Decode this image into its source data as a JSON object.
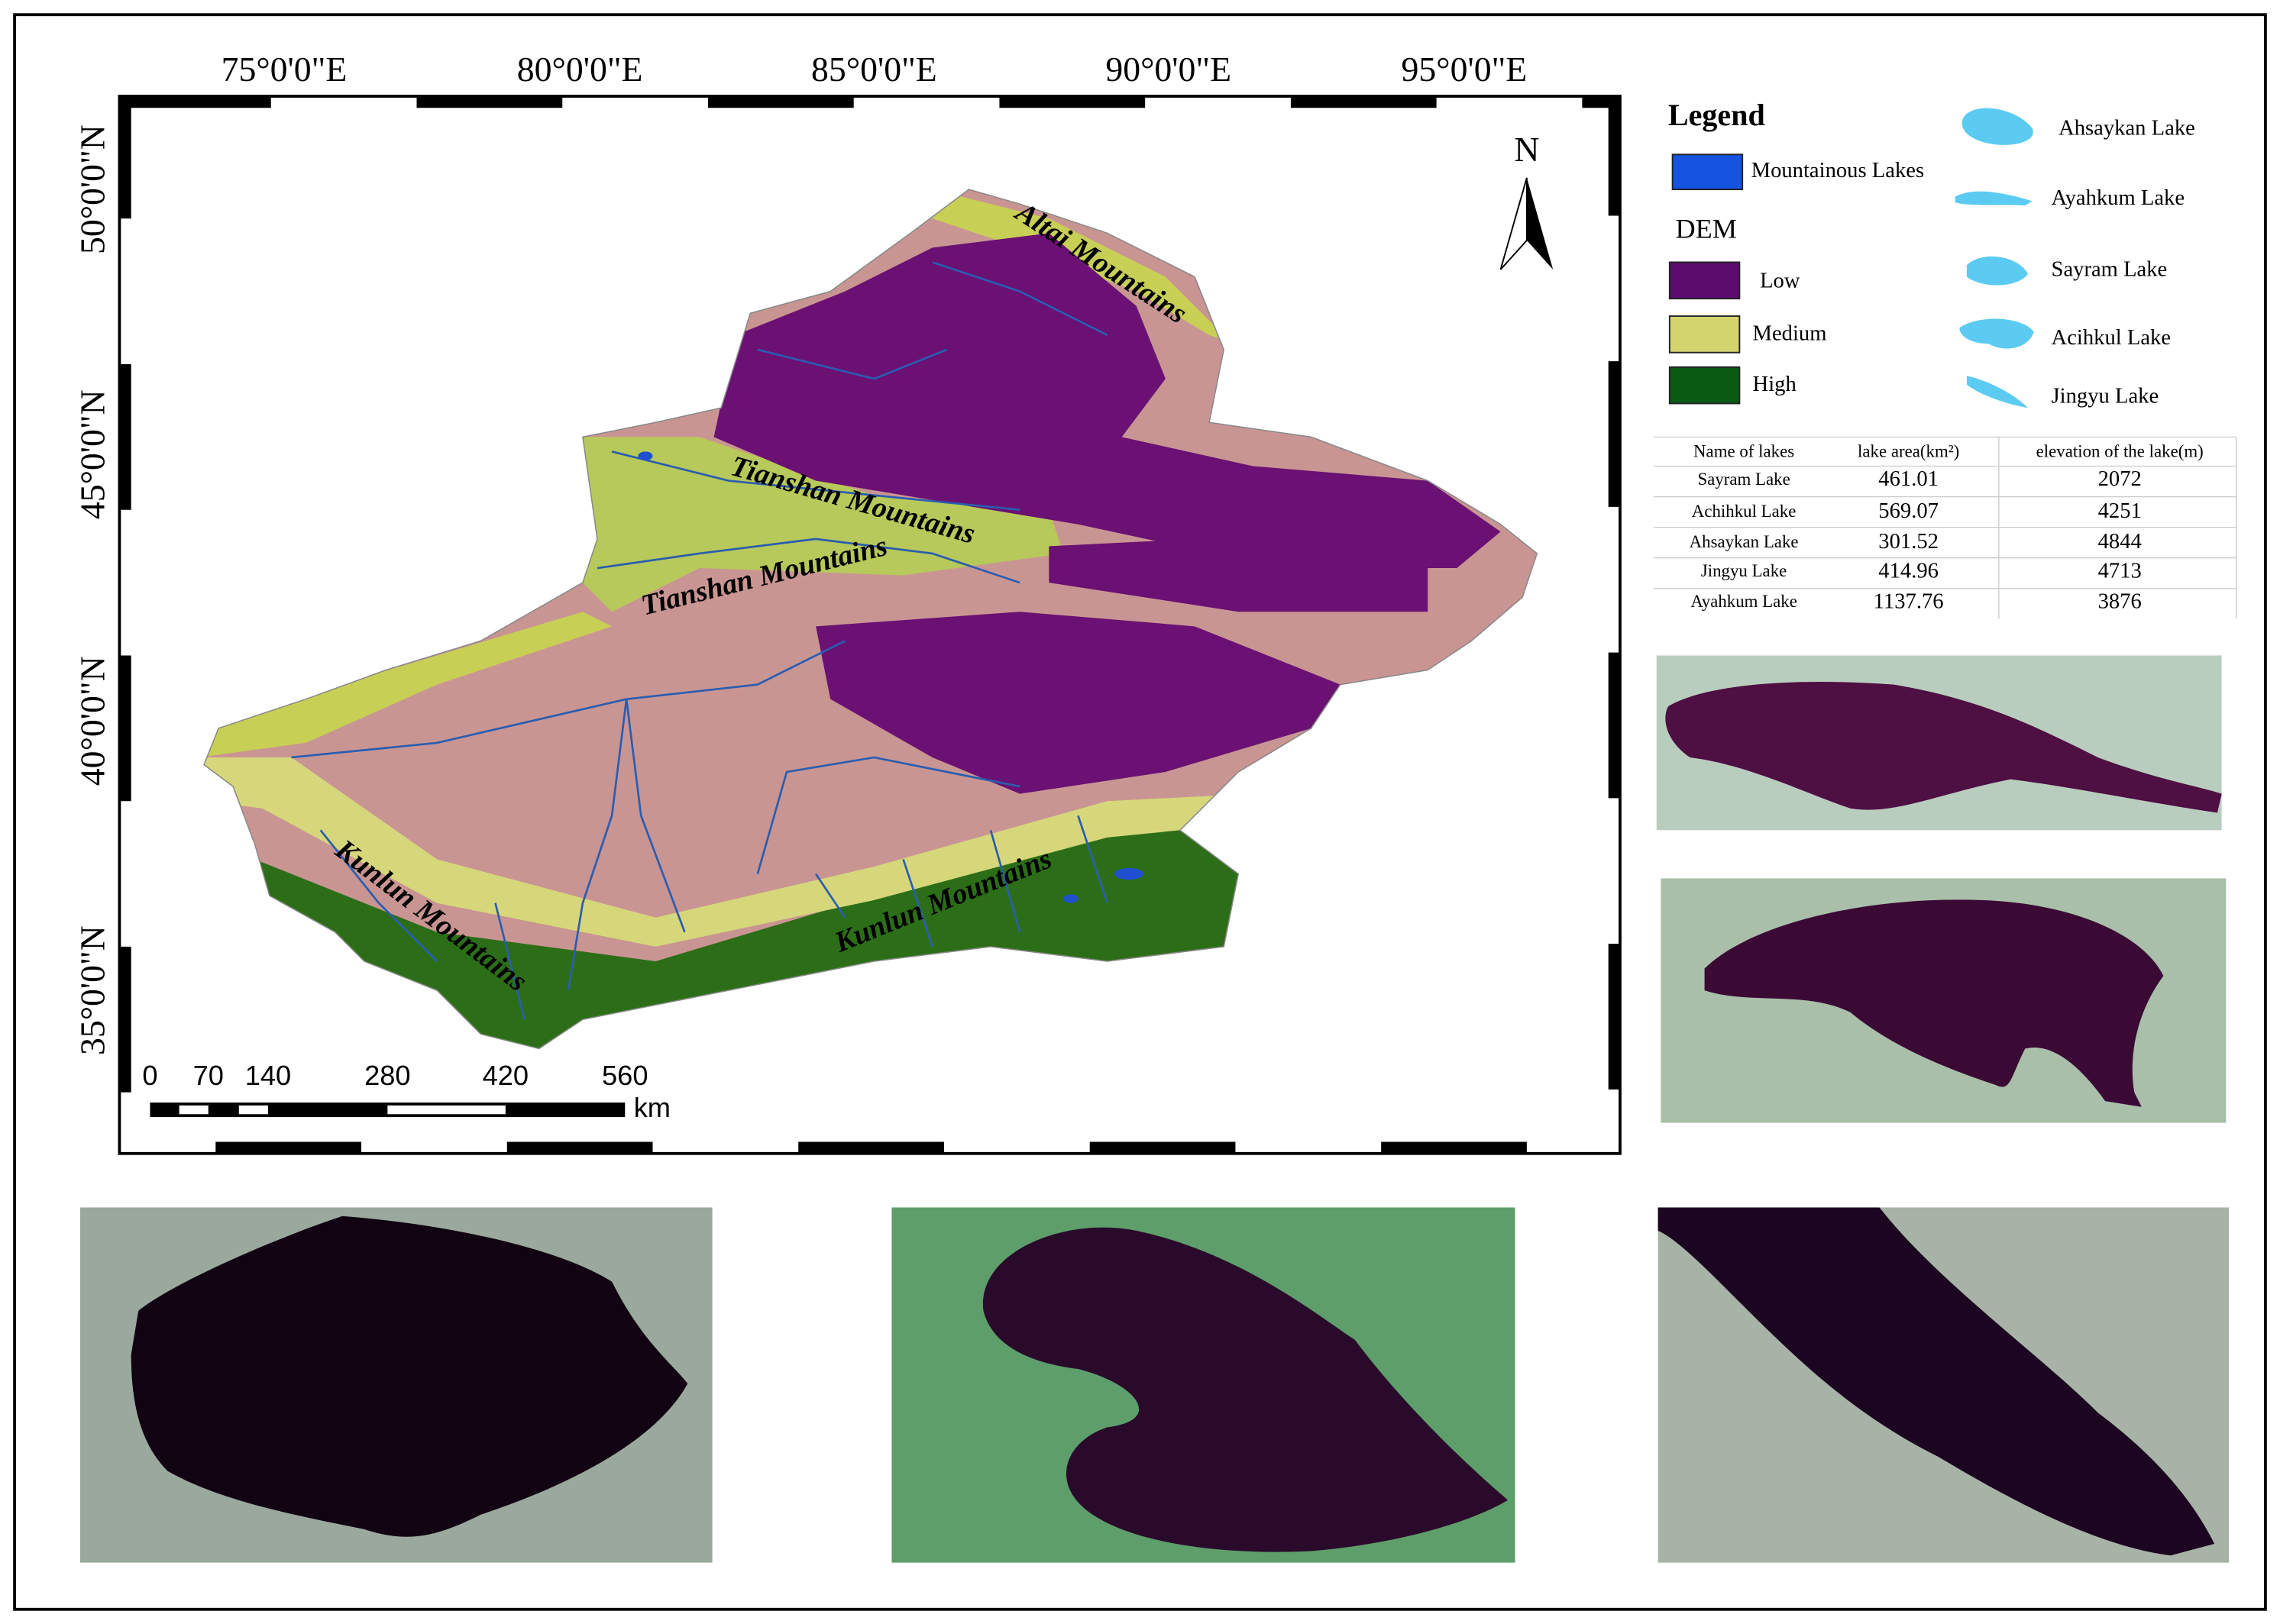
{
  "map": {
    "lon_labels": [
      "75°0'0\"E",
      "80°0'0\"E",
      "85°0'0\"E",
      "90°0'0\"E",
      "95°0'0\"E"
    ],
    "lat_labels": [
      "50°0'0\"N",
      "45°0'0\"N",
      "40°0'0\"N",
      "35°0'0\"N"
    ],
    "north": "N",
    "mountain_labels": [
      "Altai Mountains",
      "Tianshan  Mountains",
      "Tianshan  Mountains",
      "Kunlun Mountains",
      "Kunlun Mountains"
    ],
    "scale_bar": {
      "labels": [
        0,
        70,
        140,
        280,
        420,
        560
      ],
      "unit": "km"
    }
  },
  "legend": {
    "title": "Legend",
    "lakes": "Mountainous Lakes",
    "dem_title": "DEM",
    "dem": [
      "Low",
      "Medium",
      "High"
    ],
    "lake_shapes": [
      "Ahsaykan Lake",
      "Ayahkum Lake",
      "Sayram Lake",
      "Acihkul Lake",
      "Jingyu Lake"
    ]
  },
  "table": {
    "header": [
      "Name of lakes",
      "lake area(km²)",
      "elevation of the lake(m)"
    ],
    "rows": [
      [
        "Sayram Lake",
        461.01,
        2072
      ],
      [
        "Achihkul Lake",
        569.07,
        4251
      ],
      [
        "Ahsaykan Lake",
        301.52,
        4844
      ],
      [
        "Jingyu Lake",
        414.96,
        4713
      ],
      [
        "Ayahkum Lake",
        1137.76,
        3876
      ]
    ]
  }
}
